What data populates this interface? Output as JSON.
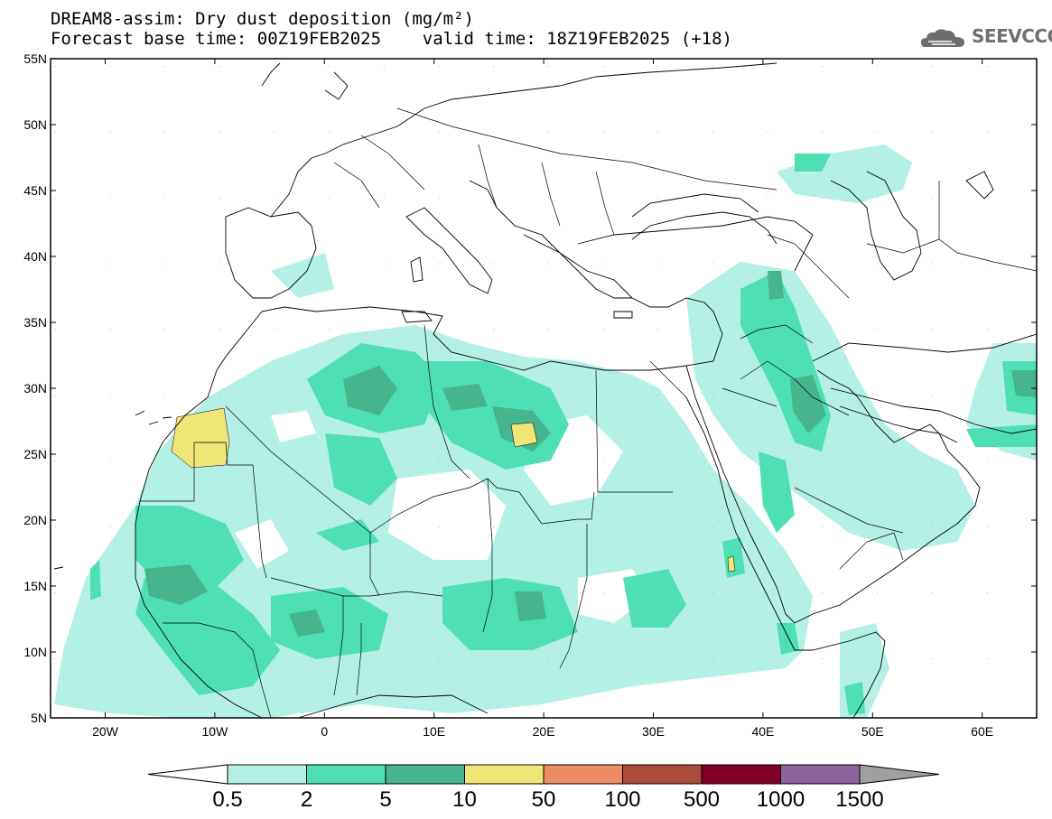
{
  "title_line1": "DREAM8-assim: Dry dust deposition (mg/m²)",
  "title_line2": "Forecast base time: 00Z19FEB2025    valid time: 18Z19FEB2025 (+18)",
  "logo": {
    "text": "SEEVCCC",
    "icon": "cloud-logo-icon"
  },
  "lat_labels": [
    "55N",
    "50N",
    "45N",
    "40N",
    "35N",
    "30N",
    "25N",
    "20N",
    "15N",
    "10N",
    "5N"
  ],
  "lon_labels": [
    "20W",
    "10W",
    "0",
    "10E",
    "20E",
    "30E",
    "40E",
    "50E",
    "60E"
  ],
  "colorbar": {
    "levels": [
      "0.5",
      "2",
      "5",
      "10",
      "50",
      "100",
      "500",
      "1000",
      "1500"
    ],
    "colors": [
      "#ffffff",
      "#b4f0e6",
      "#4ee0b4",
      "#46b48c",
      "#f0e678",
      "#eb8c64",
      "#aa4b3c",
      "#820028",
      "#8c64a0",
      "#a0a0a0"
    ]
  }
}
